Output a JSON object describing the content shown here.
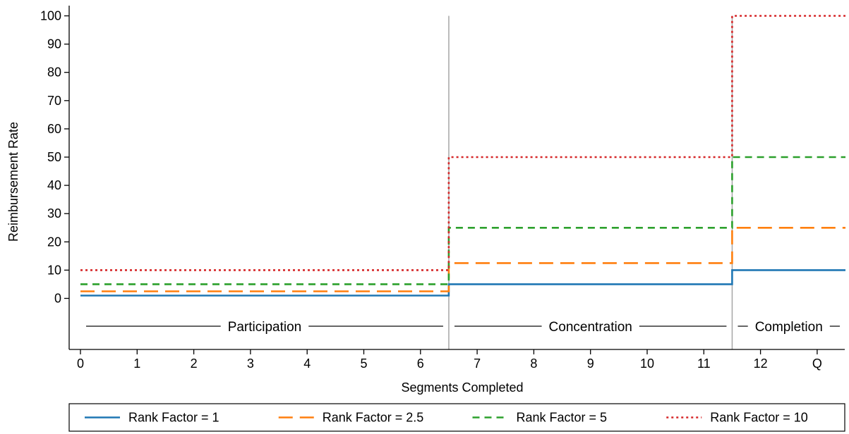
{
  "chart_data": {
    "type": "line",
    "step": true,
    "xlabel": "Segments Completed",
    "ylabel": "Reimbursement Rate",
    "x_ticks": [
      "0",
      "1",
      "2",
      "3",
      "4",
      "5",
      "6",
      "7",
      "8",
      "9",
      "10",
      "11",
      "12",
      "Q"
    ],
    "y_ticks": [
      0,
      10,
      20,
      30,
      40,
      50,
      60,
      70,
      80,
      90,
      100
    ],
    "xlim": [
      -0.15,
      13.5
    ],
    "ylim": [
      -18,
      100
    ],
    "grid": false,
    "legend_position": "bottom",
    "phases": [
      {
        "label": "Participation",
        "x_start": 0.1,
        "x_end": 6.4
      },
      {
        "label": "Concentration",
        "x_start": 6.6,
        "x_end": 11.4
      },
      {
        "label": "Completion",
        "x_start": 11.6,
        "x_end": 13.4
      }
    ],
    "phase_boundaries": [
      6.5,
      11.5
    ],
    "series": [
      {
        "name": "Rank Factor = 1",
        "color": "#1f77b4",
        "dash": "solid",
        "x_start": 0,
        "x_end": 13.5,
        "steps_at": [
          6.5,
          11.5
        ],
        "values": [
          1,
          5,
          10
        ]
      },
      {
        "name": "Rank Factor = 2.5",
        "color": "#ff7f0e",
        "dash": "longdash",
        "x_start": 0,
        "x_end": 13.5,
        "steps_at": [
          6.5,
          11.5
        ],
        "values": [
          2.5,
          12.5,
          25
        ]
      },
      {
        "name": "Rank Factor = 5",
        "color": "#2ca02c",
        "dash": "dash",
        "x_start": 0,
        "x_end": 13.5,
        "steps_at": [
          6.5,
          11.5
        ],
        "values": [
          5,
          25,
          50
        ]
      },
      {
        "name": "Rank Factor = 10",
        "color": "#d62728",
        "dash": "dot",
        "x_start": 0,
        "x_end": 13.5,
        "steps_at": [
          6.5,
          11.5
        ],
        "values": [
          10,
          50,
          100
        ]
      }
    ]
  }
}
